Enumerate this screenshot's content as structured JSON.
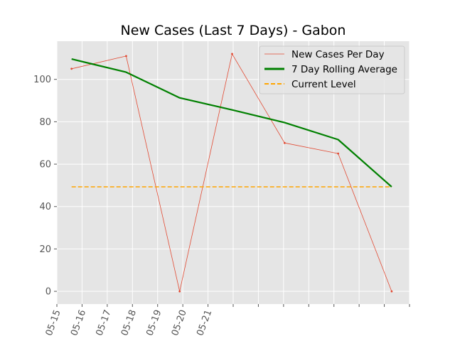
{
  "chart_data": {
    "type": "line",
    "title": "New Cases (Last 7 Days) - Gabon",
    "xlabel": "",
    "ylabel": "",
    "ylim": [
      -6,
      118
    ],
    "yticks": [
      0,
      20,
      40,
      60,
      80,
      100
    ],
    "xticks": [
      "05-15",
      "05-16",
      "05-17",
      "05-18",
      "05-19",
      "05-20",
      "05-21",
      "",
      "",
      "",
      "",
      "",
      "",
      "",
      ""
    ],
    "grid": true,
    "legend_position": "top-right",
    "series": [
      {
        "name": "New Cases Per Day",
        "style": "thin-line-with-point-markers",
        "color": "#E24A33",
        "points": [
          {
            "x": "2020-05-15T14:00",
            "y": 105
          },
          {
            "x": "2020-05-17T18:00",
            "y": 111
          },
          {
            "x": "2020-05-19T21:00",
            "y": 0
          },
          {
            "x": "2020-05-21T23:00",
            "y": 112
          },
          {
            "x": "2020-05-24T01:00",
            "y": 70
          },
          {
            "x": "2020-05-26T04:00",
            "y": 65
          },
          {
            "x": "2020-05-28T07:00",
            "y": 0
          }
        ]
      },
      {
        "name": "7 Day Rolling Average",
        "style": "thick-line",
        "color": "#008000",
        "points": [
          {
            "x": "2020-05-15T14:00",
            "y": 109.6
          },
          {
            "x": "2020-05-17T18:00",
            "y": 103.4
          },
          {
            "x": "2020-05-19T21:00",
            "y": 91.3
          },
          {
            "x": "2020-05-21T23:00",
            "y": 85.6
          },
          {
            "x": "2020-05-24T01:00",
            "y": 79.6
          },
          {
            "x": "2020-05-26T04:00",
            "y": 71.6
          },
          {
            "x": "2020-05-28T07:00",
            "y": 49.3
          }
        ]
      },
      {
        "name": "Current Level",
        "style": "dashed-line",
        "color": "#FFA500",
        "points": [
          {
            "x": "2020-05-15T14:00",
            "y": 49.3
          },
          {
            "x": "2020-05-28T07:00",
            "y": 49.3
          }
        ]
      }
    ]
  }
}
